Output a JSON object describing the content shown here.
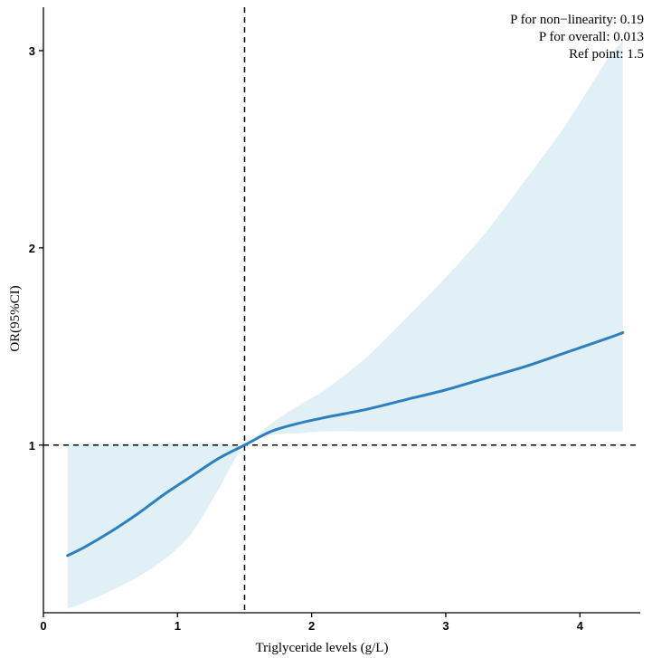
{
  "chart_data": {
    "type": "line",
    "xlabel": "Triglyceride levels (g/L)",
    "ylabel": "OR(95%CI)",
    "xlim": [
      0,
      4.45
    ],
    "ylim": [
      0.15,
      3.22
    ],
    "x_ticks": [
      0,
      1,
      2,
      3,
      4
    ],
    "y_ticks": [
      1,
      2,
      3
    ],
    "grid": false,
    "reference_lines": {
      "x": 1.5,
      "y": 1
    },
    "colors": {
      "line": "#2e7fbd",
      "band": "#e1eff6",
      "ref": "#000000"
    },
    "annotations": [
      {
        "label": "P for non−linearity:",
        "value": "0.19"
      },
      {
        "label": "P for overall:",
        "value": "0.013"
      },
      {
        "label": "Ref point:",
        "value": "1.5"
      }
    ],
    "series": [
      {
        "x": [
          0.18,
          0.3,
          0.5,
          0.7,
          0.9,
          1.1,
          1.3,
          1.5,
          1.7,
          1.9,
          2.1,
          2.4,
          2.7,
          3.0,
          3.3,
          3.6,
          3.9,
          4.2,
          4.32
        ],
        "y": [
          0.44,
          0.48,
          0.56,
          0.65,
          0.75,
          0.84,
          0.93,
          1.0,
          1.07,
          1.11,
          1.14,
          1.18,
          1.23,
          1.28,
          1.34,
          1.4,
          1.47,
          1.54,
          1.57
        ],
        "lower": [
          0.17,
          0.2,
          0.26,
          0.33,
          0.42,
          0.55,
          0.77,
          1.0,
          1.05,
          1.06,
          1.07,
          1.07,
          1.07,
          1.07,
          1.07,
          1.07,
          1.07,
          1.07,
          1.07
        ],
        "upper": [
          1.01,
          1.01,
          1.01,
          1.01,
          1.01,
          1.01,
          1.01,
          1.0,
          1.11,
          1.2,
          1.28,
          1.44,
          1.64,
          1.85,
          2.08,
          2.35,
          2.63,
          2.95,
          3.05
        ]
      }
    ]
  }
}
